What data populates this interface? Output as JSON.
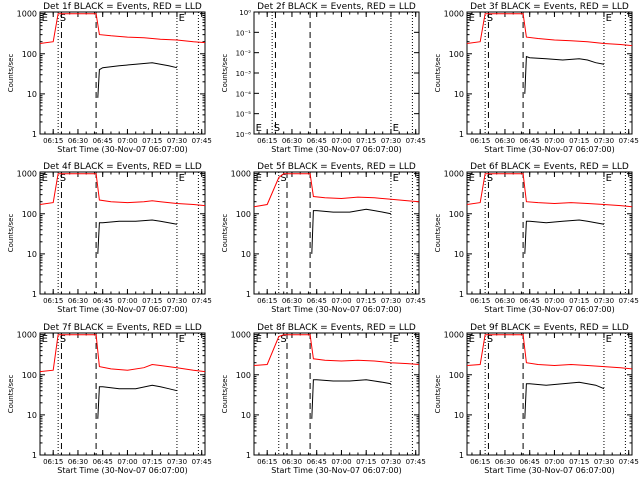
{
  "figure": {
    "x_axis_title": "Start Time (30-Nov-07 06:07:00)",
    "y_axis_title": "Counts/sec",
    "x_tick_labels": [
      "06:15",
      "06:30",
      "06:45",
      "07:00",
      "07:15",
      "07:30",
      "07:45"
    ],
    "y_tick_labels_log": [
      "1",
      "10",
      "100",
      "1000"
    ],
    "y_tick_labels_panel2": [
      "10⁰",
      "10⁻¹",
      "10⁻²",
      "10⁻³",
      "10⁻⁴",
      "10⁻⁵",
      "10⁻⁶"
    ],
    "marker_labels": [
      "E",
      "S",
      "E"
    ],
    "colors": {
      "events": "#000000",
      "lld": "#ff0000"
    }
  },
  "chart_data": [
    {
      "type": "line",
      "title": "Det 1f BLACK = Events, RED = LLD",
      "xlabel": "Start Time (30-Nov-07 06:07:00)",
      "ylabel": "Counts/sec",
      "x_unit": "time",
      "xlim": [
        "06:07",
        "07:47"
      ],
      "ylim": [
        1,
        1100
      ],
      "y_scale": "log",
      "dashed_lines": [
        "06:20",
        "06:41"
      ],
      "dotted_lines": [
        "06:18",
        "07:30",
        "07:43"
      ],
      "series": [
        {
          "name": "LLD",
          "color": "#ff0000",
          "x": [
            "06:07",
            "06:15",
            "06:18",
            "06:20",
            "06:41",
            "06:43",
            "06:50",
            "07:00",
            "07:10",
            "07:15",
            "07:20",
            "07:30",
            "07:40",
            "07:47"
          ],
          "y": [
            180,
            200,
            1000,
            1000,
            1000,
            300,
            280,
            260,
            250,
            240,
            230,
            220,
            200,
            190
          ]
        },
        {
          "name": "Events",
          "color": "#000000",
          "x": [
            "06:42",
            "06:43",
            "06:45",
            "06:55",
            "07:05",
            "07:15",
            "07:20",
            "07:25",
            "07:30"
          ],
          "y": [
            8,
            40,
            45,
            50,
            55,
            60,
            55,
            50,
            45
          ]
        }
      ]
    },
    {
      "type": "line",
      "title": "Det 2f BLACK = Events, RED = LLD",
      "xlabel": "Start Time (30-Nov-07 06:07:00)",
      "ylabel": "Counts/sec",
      "x_unit": "time",
      "xlim": [
        "06:07",
        "07:47"
      ],
      "ylim": [
        1e-06,
        1
      ],
      "y_scale": "log",
      "dashed_lines": [
        "06:20",
        "06:41"
      ],
      "dotted_lines": [
        "06:18",
        "07:30",
        "07:43"
      ],
      "series": []
    },
    {
      "type": "line",
      "title": "Det 3f BLACK = Events, RED = LLD",
      "xlabel": "Start Time (30-Nov-07 06:07:00)",
      "ylabel": "Counts/sec",
      "x_unit": "time",
      "xlim": [
        "06:07",
        "07:47"
      ],
      "ylim": [
        1,
        1100
      ],
      "y_scale": "log",
      "dashed_lines": [
        "06:20",
        "06:41"
      ],
      "dotted_lines": [
        "06:18",
        "07:30",
        "07:43"
      ],
      "series": [
        {
          "name": "LLD",
          "color": "#ff0000",
          "x": [
            "06:07",
            "06:15",
            "06:18",
            "06:20",
            "06:41",
            "06:43",
            "06:50",
            "07:00",
            "07:10",
            "07:20",
            "07:30",
            "07:40",
            "07:47"
          ],
          "y": [
            180,
            200,
            1000,
            1000,
            1000,
            260,
            240,
            220,
            210,
            200,
            180,
            170,
            160
          ]
        },
        {
          "name": "Events",
          "color": "#000000",
          "x": [
            "06:42",
            "06:43",
            "06:45",
            "06:55",
            "07:05",
            "07:15",
            "07:20",
            "07:25",
            "07:30"
          ],
          "y": [
            10,
            85,
            80,
            75,
            70,
            75,
            70,
            60,
            55
          ]
        }
      ]
    },
    {
      "type": "line",
      "title": "Det 4f BLACK = Events, RED = LLD",
      "xlabel": "Start Time (30-Nov-07 06:07:00)",
      "ylabel": "Counts/sec",
      "x_unit": "time",
      "xlim": [
        "06:07",
        "07:47"
      ],
      "ylim": [
        1,
        1100
      ],
      "y_scale": "log",
      "dashed_lines": [
        "06:20",
        "06:41"
      ],
      "dotted_lines": [
        "06:18",
        "07:30",
        "07:43"
      ],
      "series": [
        {
          "name": "LLD",
          "color": "#ff0000",
          "x": [
            "06:07",
            "06:15",
            "06:18",
            "06:20",
            "06:41",
            "06:43",
            "06:50",
            "07:00",
            "07:10",
            "07:15",
            "07:20",
            "07:30",
            "07:40",
            "07:47"
          ],
          "y": [
            170,
            190,
            1000,
            1000,
            1000,
            220,
            200,
            190,
            200,
            210,
            200,
            180,
            170,
            160
          ]
        },
        {
          "name": "Events",
          "color": "#000000",
          "x": [
            "06:42",
            "06:43",
            "06:45",
            "06:55",
            "07:05",
            "07:15",
            "07:20",
            "07:25",
            "07:30"
          ],
          "y": [
            10,
            60,
            60,
            65,
            65,
            70,
            65,
            60,
            55
          ]
        }
      ]
    },
    {
      "type": "line",
      "title": "Det 5f BLACK = Events, RED = LLD",
      "xlabel": "Start Time (30-Nov-07 06:07:00)",
      "ylabel": "Counts/sec",
      "x_unit": "time",
      "xlim": [
        "06:07",
        "07:47"
      ],
      "ylim": [
        1,
        1100
      ],
      "y_scale": "log",
      "dashed_lines": [
        "06:27",
        "06:41"
      ],
      "dotted_lines": [
        "06:22",
        "07:30",
        "07:43"
      ],
      "series": [
        {
          "name": "LLD",
          "color": "#ff0000",
          "x": [
            "06:07",
            "06:15",
            "06:22",
            "06:25",
            "06:41",
            "06:43",
            "06:50",
            "07:00",
            "07:10",
            "07:20",
            "07:30",
            "07:40",
            "07:47"
          ],
          "y": [
            150,
            170,
            800,
            1000,
            1000,
            270,
            250,
            240,
            260,
            250,
            230,
            210,
            200
          ]
        },
        {
          "name": "Events",
          "color": "#000000",
          "x": [
            "06:42",
            "06:43",
            "06:45",
            "06:55",
            "07:05",
            "07:15",
            "07:20",
            "07:25",
            "07:30"
          ],
          "y": [
            10,
            120,
            120,
            110,
            110,
            130,
            120,
            110,
            100
          ]
        }
      ]
    },
    {
      "type": "line",
      "title": "Det 6f BLACK = Events, RED = LLD",
      "xlabel": "Start Time (30-Nov-07 06:07:00)",
      "ylabel": "Counts/sec",
      "x_unit": "time",
      "xlim": [
        "06:07",
        "07:47"
      ],
      "ylim": [
        1,
        1100
      ],
      "y_scale": "log",
      "dashed_lines": [
        "06:20",
        "06:41"
      ],
      "dotted_lines": [
        "06:18",
        "07:30",
        "07:43"
      ],
      "series": [
        {
          "name": "LLD",
          "color": "#ff0000",
          "x": [
            "06:07",
            "06:15",
            "06:18",
            "06:20",
            "06:41",
            "06:43",
            "06:50",
            "07:00",
            "07:10",
            "07:20",
            "07:30",
            "07:40",
            "07:47"
          ],
          "y": [
            170,
            190,
            1000,
            1000,
            1000,
            200,
            190,
            180,
            190,
            180,
            170,
            160,
            150
          ]
        },
        {
          "name": "Events",
          "color": "#000000",
          "x": [
            "06:42",
            "06:43",
            "06:45",
            "06:55",
            "07:05",
            "07:15",
            "07:20",
            "07:25",
            "07:30"
          ],
          "y": [
            10,
            65,
            65,
            60,
            65,
            70,
            65,
            60,
            55
          ]
        }
      ]
    },
    {
      "type": "line",
      "title": "Det 7f BLACK = Events, RED = LLD",
      "xlabel": "Start Time (30-Nov-07 06:07:00)",
      "ylabel": "Counts/sec",
      "x_unit": "time",
      "xlim": [
        "06:07",
        "07:47"
      ],
      "ylim": [
        1,
        1100
      ],
      "y_scale": "log",
      "dashed_lines": [
        "06:20",
        "06:41"
      ],
      "dotted_lines": [
        "06:18",
        "07:30",
        "07:43"
      ],
      "series": [
        {
          "name": "LLD",
          "color": "#ff0000",
          "x": [
            "06:07",
            "06:15",
            "06:18",
            "06:20",
            "06:41",
            "06:43",
            "06:50",
            "07:00",
            "07:10",
            "07:15",
            "07:20",
            "07:30",
            "07:40",
            "07:47"
          ],
          "y": [
            120,
            130,
            1000,
            1000,
            1000,
            160,
            140,
            130,
            150,
            180,
            170,
            150,
            130,
            120
          ]
        },
        {
          "name": "Events",
          "color": "#000000",
          "x": [
            "06:42",
            "06:43",
            "06:45",
            "06:55",
            "07:05",
            "07:15",
            "07:20",
            "07:25",
            "07:30"
          ],
          "y": [
            8,
            50,
            50,
            45,
            45,
            55,
            50,
            45,
            40
          ]
        }
      ]
    },
    {
      "type": "line",
      "title": "Det 8f BLACK = Events, RED = LLD",
      "xlabel": "Start Time (30-Nov-07 06:07:00)",
      "ylabel": "Counts/sec",
      "x_unit": "time",
      "xlim": [
        "06:07",
        "07:47"
      ],
      "ylim": [
        1,
        1100
      ],
      "y_scale": "log",
      "dashed_lines": [
        "06:27",
        "06:41"
      ],
      "dotted_lines": [
        "06:22",
        "07:30",
        "07:43"
      ],
      "series": [
        {
          "name": "LLD",
          "color": "#ff0000",
          "x": [
            "06:07",
            "06:15",
            "06:22",
            "06:25",
            "06:41",
            "06:43",
            "06:50",
            "07:00",
            "07:10",
            "07:20",
            "07:30",
            "07:40",
            "07:47"
          ],
          "y": [
            170,
            180,
            900,
            1000,
            1000,
            250,
            230,
            220,
            230,
            220,
            200,
            190,
            180
          ]
        },
        {
          "name": "Events",
          "color": "#000000",
          "x": [
            "06:42",
            "06:43",
            "06:45",
            "06:55",
            "07:05",
            "07:15",
            "07:20",
            "07:25",
            "07:30"
          ],
          "y": [
            8,
            75,
            75,
            70,
            70,
            75,
            70,
            65,
            60
          ]
        }
      ]
    },
    {
      "type": "line",
      "title": "Det 9f BLACK = Events, RED = LLD",
      "xlabel": "Start Time (30-Nov-07 06:07:00)",
      "ylabel": "Counts/sec",
      "x_unit": "time",
      "xlim": [
        "06:07",
        "07:47"
      ],
      "ylim": [
        1,
        1100
      ],
      "y_scale": "log",
      "dashed_lines": [
        "06:20",
        "06:41"
      ],
      "dotted_lines": [
        "06:18",
        "07:30",
        "07:43"
      ],
      "series": [
        {
          "name": "LLD",
          "color": "#ff0000",
          "x": [
            "06:07",
            "06:15",
            "06:18",
            "06:20",
            "06:41",
            "06:43",
            "06:50",
            "07:00",
            "07:10",
            "07:20",
            "07:30",
            "07:40",
            "07:47"
          ],
          "y": [
            170,
            180,
            1000,
            1000,
            1000,
            200,
            180,
            170,
            180,
            170,
            160,
            150,
            140
          ]
        },
        {
          "name": "Events",
          "color": "#000000",
          "x": [
            "06:42",
            "06:43",
            "06:45",
            "06:55",
            "07:05",
            "07:15",
            "07:20",
            "07:25",
            "07:30"
          ],
          "y": [
            8,
            60,
            60,
            55,
            60,
            65,
            60,
            55,
            45
          ]
        }
      ]
    }
  ]
}
